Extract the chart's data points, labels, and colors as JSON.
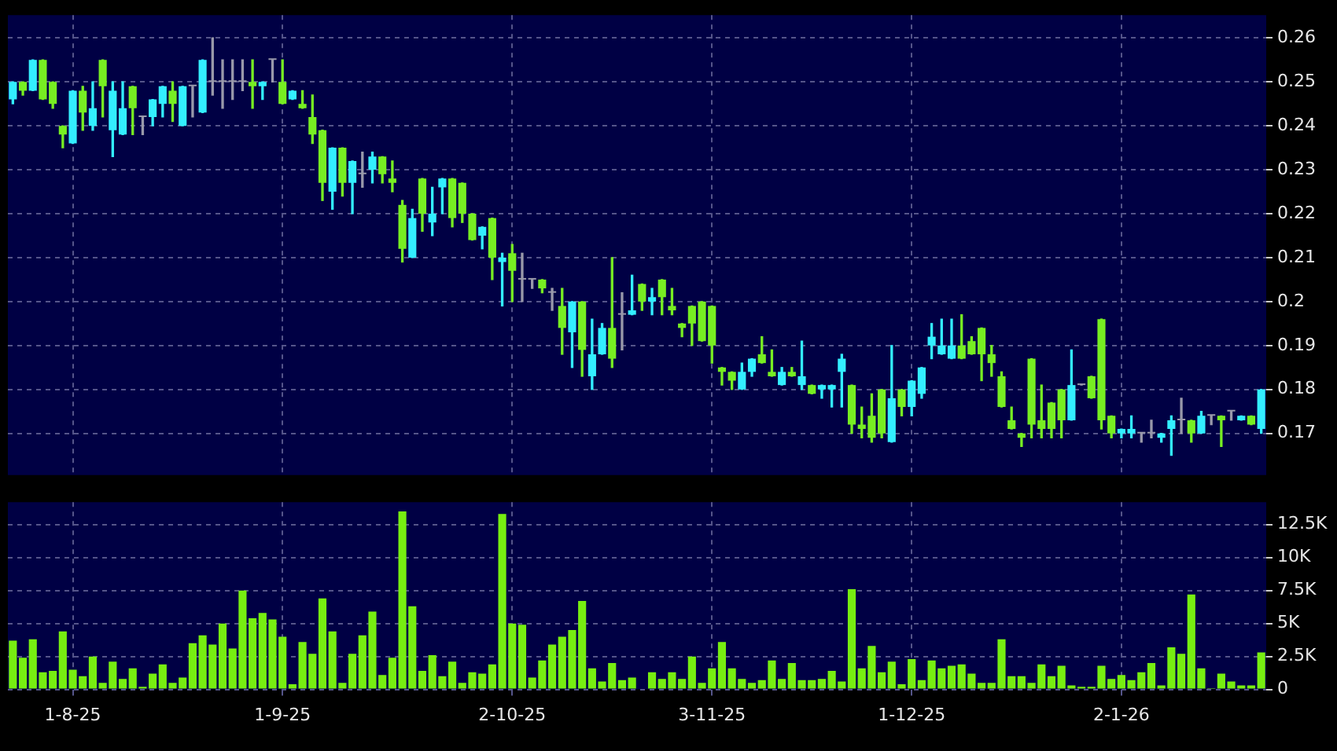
{
  "chart_data": [
    {
      "type": "candlestick",
      "tick_labels": "y",
      "grid": true,
      "categories": [
        null,
        null,
        null,
        null,
        null,
        null,
        null,
        null,
        null,
        null,
        null,
        null,
        null,
        null,
        null,
        null,
        null,
        null,
        null,
        null,
        null,
        null,
        null,
        null,
        null,
        null,
        null,
        null,
        null,
        null,
        null,
        null,
        null,
        null,
        null,
        null,
        null,
        null,
        null,
        null,
        null,
        null,
        null,
        null,
        null,
        null,
        null,
        null,
        null,
        null,
        null,
        null,
        null,
        null,
        null,
        null,
        null,
        null,
        null,
        null,
        null,
        null,
        null,
        null,
        null,
        null,
        null,
        null,
        null,
        null,
        null,
        null,
        null,
        null,
        null,
        null,
        null,
        null,
        null,
        null,
        null,
        null,
        null,
        null,
        null,
        null,
        null,
        null,
        null,
        null,
        null,
        null,
        null,
        null,
        null,
        null,
        null,
        null,
        null,
        null,
        null,
        null,
        null,
        null,
        null,
        null,
        null,
        null,
        null,
        null,
        null,
        null,
        null,
        null,
        null,
        null,
        null,
        null,
        null,
        null,
        null,
        null,
        null,
        null,
        null,
        null
      ],
      "ohlc": [
        [
          0.246,
          0.25,
          0.245,
          0.25
        ],
        [
          0.25,
          0.25,
          0.247,
          0.248
        ],
        [
          0.248,
          0.255,
          0.248,
          0.255
        ],
        [
          0.255,
          0.255,
          0.246,
          0.246
        ],
        [
          0.25,
          0.25,
          0.244,
          0.245
        ],
        [
          0.24,
          0.24,
          0.235,
          0.238
        ],
        [
          0.236,
          0.248,
          0.236,
          0.248
        ],
        [
          0.248,
          0.249,
          0.239,
          0.243
        ],
        [
          0.24,
          0.25,
          0.239,
          0.244
        ],
        [
          0.255,
          0.255,
          0.242,
          0.249
        ],
        [
          0.239,
          0.25,
          0.233,
          0.248
        ],
        [
          0.238,
          0.25,
          0.238,
          0.244
        ],
        [
          0.249,
          0.249,
          0.238,
          0.244
        ],
        [
          0.242,
          0.242,
          0.238,
          0.242
        ],
        [
          0.242,
          0.246,
          0.24,
          0.246
        ],
        [
          0.245,
          0.249,
          0.242,
          0.249
        ],
        [
          0.248,
          0.25,
          0.241,
          0.245
        ],
        [
          0.24,
          0.249,
          0.24,
          0.249
        ],
        [
          0.249,
          0.249,
          0.242,
          0.249
        ],
        [
          0.243,
          0.255,
          0.243,
          0.255
        ],
        [
          0.25,
          0.26,
          0.247,
          0.25
        ],
        [
          0.25,
          0.255,
          0.244,
          0.25
        ],
        [
          0.25,
          0.255,
          0.246,
          0.25
        ],
        [
          0.25,
          0.255,
          0.248,
          0.25
        ],
        [
          0.25,
          0.255,
          0.244,
          0.249
        ],
        [
          0.249,
          0.25,
          0.246,
          0.25
        ],
        [
          0.255,
          0.255,
          0.25,
          0.255
        ],
        [
          0.25,
          0.255,
          0.245,
          0.245
        ],
        [
          0.246,
          0.248,
          0.246,
          0.248
        ],
        [
          0.245,
          0.248,
          0.244,
          0.244
        ],
        [
          0.242,
          0.247,
          0.236,
          0.238
        ],
        [
          0.239,
          0.239,
          0.223,
          0.227
        ],
        [
          0.225,
          0.235,
          0.221,
          0.235
        ],
        [
          0.235,
          0.235,
          0.224,
          0.227
        ],
        [
          0.227,
          0.232,
          0.22,
          0.232
        ],
        [
          0.229,
          0.234,
          0.226,
          0.229
        ],
        [
          0.23,
          0.234,
          0.227,
          0.233
        ],
        [
          0.233,
          0.233,
          0.227,
          0.229
        ],
        [
          0.228,
          0.232,
          0.225,
          0.227
        ],
        [
          0.222,
          0.223,
          0.209,
          0.212
        ],
        [
          0.21,
          0.221,
          0.21,
          0.219
        ],
        [
          0.228,
          0.228,
          0.216,
          0.22
        ],
        [
          0.218,
          0.226,
          0.215,
          0.22
        ],
        [
          0.226,
          0.228,
          0.22,
          0.228
        ],
        [
          0.228,
          0.228,
          0.217,
          0.219
        ],
        [
          0.227,
          0.227,
          0.218,
          0.22
        ],
        [
          0.22,
          0.22,
          0.214,
          0.214
        ],
        [
          0.215,
          0.217,
          0.212,
          0.217
        ],
        [
          0.219,
          0.219,
          0.205,
          0.21
        ],
        [
          0.209,
          0.211,
          0.199,
          0.21
        ],
        [
          0.211,
          0.213,
          0.2,
          0.207
        ],
        [
          0.205,
          0.211,
          0.2,
          0.205
        ],
        [
          0.205,
          0.205,
          0.203,
          0.205
        ],
        [
          0.205,
          0.205,
          0.202,
          0.203
        ],
        [
          0.202,
          0.203,
          0.198,
          0.202
        ],
        [
          0.199,
          0.203,
          0.188,
          0.194
        ],
        [
          0.193,
          0.2,
          0.185,
          0.2
        ],
        [
          0.2,
          0.2,
          0.183,
          0.189
        ],
        [
          0.183,
          0.196,
          0.18,
          0.188
        ],
        [
          0.188,
          0.195,
          0.188,
          0.194
        ],
        [
          0.194,
          0.21,
          0.185,
          0.187
        ],
        [
          0.197,
          0.202,
          0.189,
          0.197
        ],
        [
          0.197,
          0.206,
          0.197,
          0.198
        ],
        [
          0.204,
          0.204,
          0.198,
          0.2
        ],
        [
          0.2,
          0.203,
          0.197,
          0.201
        ],
        [
          0.205,
          0.205,
          0.197,
          0.201
        ],
        [
          0.199,
          0.203,
          0.197,
          0.198
        ],
        [
          0.195,
          0.195,
          0.192,
          0.194
        ],
        [
          0.199,
          0.199,
          0.19,
          0.195
        ],
        [
          0.2,
          0.2,
          0.191,
          0.191
        ],
        [
          0.199,
          0.199,
          0.186,
          0.19
        ],
        [
          0.185,
          0.185,
          0.181,
          0.184
        ],
        [
          0.184,
          0.184,
          0.18,
          0.182
        ],
        [
          0.18,
          0.186,
          0.18,
          0.184
        ],
        [
          0.184,
          0.187,
          0.183,
          0.187
        ],
        [
          0.188,
          0.192,
          0.186,
          0.186
        ],
        [
          0.184,
          0.189,
          0.183,
          0.183
        ],
        [
          0.181,
          0.185,
          0.181,
          0.184
        ],
        [
          0.184,
          0.185,
          0.183,
          0.183
        ],
        [
          0.181,
          0.191,
          0.18,
          0.183
        ],
        [
          0.181,
          0.181,
          0.179,
          0.179
        ],
        [
          0.18,
          0.181,
          0.178,
          0.181
        ],
        [
          0.18,
          0.181,
          0.176,
          0.181
        ],
        [
          0.184,
          0.188,
          0.176,
          0.187
        ],
        [
          0.181,
          0.181,
          0.17,
          0.172
        ],
        [
          0.172,
          0.176,
          0.169,
          0.171
        ],
        [
          0.174,
          0.179,
          0.168,
          0.169
        ],
        [
          0.18,
          0.18,
          0.169,
          0.17
        ],
        [
          0.168,
          0.19,
          0.168,
          0.178
        ],
        [
          0.18,
          0.18,
          0.174,
          0.176
        ],
        [
          0.176,
          0.182,
          0.174,
          0.182
        ],
        [
          0.179,
          0.185,
          0.178,
          0.185
        ],
        [
          0.19,
          0.195,
          0.187,
          0.192
        ],
        [
          0.188,
          0.196,
          0.188,
          0.19
        ],
        [
          0.187,
          0.196,
          0.187,
          0.19
        ],
        [
          0.19,
          0.197,
          0.187,
          0.187
        ],
        [
          0.191,
          0.192,
          0.188,
          0.188
        ],
        [
          0.194,
          0.194,
          0.182,
          0.188
        ],
        [
          0.188,
          0.19,
          0.183,
          0.186
        ],
        [
          0.183,
          0.184,
          0.176,
          0.176
        ],
        [
          0.173,
          0.176,
          0.171,
          0.171
        ],
        [
          0.17,
          0.17,
          0.167,
          0.169
        ],
        [
          0.187,
          0.187,
          0.169,
          0.172
        ],
        [
          0.173,
          0.181,
          0.169,
          0.171
        ],
        [
          0.177,
          0.177,
          0.169,
          0.171
        ],
        [
          0.18,
          0.18,
          0.169,
          0.173
        ],
        [
          0.173,
          0.189,
          0.173,
          0.181
        ],
        [
          0.181,
          0.181,
          0.181,
          0.181
        ],
        [
          0.183,
          0.183,
          0.178,
          0.178
        ],
        [
          0.196,
          0.196,
          0.171,
          0.173
        ],
        [
          0.174,
          0.174,
          0.169,
          0.17
        ],
        [
          0.17,
          0.171,
          0.169,
          0.171
        ],
        [
          0.17,
          0.174,
          0.169,
          0.171
        ],
        [
          0.17,
          0.17,
          0.168,
          0.17
        ],
        [
          0.17,
          0.173,
          0.169,
          0.17
        ],
        [
          0.169,
          0.17,
          0.168,
          0.17
        ],
        [
          0.171,
          0.174,
          0.165,
          0.173
        ],
        [
          0.173,
          0.178,
          0.17,
          0.173
        ],
        [
          0.173,
          0.173,
          0.168,
          0.17
        ],
        [
          0.17,
          0.175,
          0.17,
          0.174
        ],
        [
          0.174,
          0.174,
          0.172,
          0.174
        ],
        [
          0.174,
          0.174,
          0.167,
          0.173
        ],
        [
          0.175,
          0.175,
          0.173,
          0.175
        ],
        [
          0.173,
          0.174,
          0.173,
          0.174
        ],
        [
          0.174,
          0.174,
          0.172,
          0.172
        ],
        [
          0.171,
          0.18,
          0.17,
          0.18
        ]
      ],
      "colors": [
        "#33eeff",
        "#77ee22",
        "#33eeff",
        "#77ee22",
        "#77ee22",
        "#77ee22",
        "#33eeff",
        "#77ee22",
        "#33eeff",
        "#77ee22",
        "#33eeff",
        "#33eeff",
        "#77ee22",
        "#9999aa",
        "#33eeff",
        "#33eeff",
        "#77ee22",
        "#33eeff",
        "#9999aa",
        "#33eeff",
        "#9999aa",
        "#9999aa",
        "#9999aa",
        "#9999aa",
        "#77ee22",
        "#33eeff",
        "#9999aa",
        "#77ee22",
        "#33eeff",
        "#77ee22",
        "#77ee22",
        "#77ee22",
        "#33eeff",
        "#77ee22",
        "#33eeff",
        "#9999aa",
        "#33eeff",
        "#77ee22",
        "#77ee22",
        "#77ee22",
        "#33eeff",
        "#77ee22",
        "#33eeff",
        "#33eeff",
        "#77ee22",
        "#77ee22",
        "#77ee22",
        "#33eeff",
        "#77ee22",
        "#33eeff",
        "#77ee22",
        "#9999aa",
        "#9999aa",
        "#77ee22",
        "#9999aa",
        "#77ee22",
        "#33eeff",
        "#77ee22",
        "#33eeff",
        "#33eeff",
        "#77ee22",
        "#9999aa",
        "#33eeff",
        "#77ee22",
        "#33eeff",
        "#77ee22",
        "#77ee22",
        "#77ee22",
        "#77ee22",
        "#77ee22",
        "#77ee22",
        "#77ee22",
        "#77ee22",
        "#33eeff",
        "#33eeff",
        "#77ee22",
        "#77ee22",
        "#33eeff",
        "#77ee22",
        "#33eeff",
        "#77ee22",
        "#33eeff",
        "#33eeff",
        "#33eeff",
        "#77ee22",
        "#77ee22",
        "#77ee22",
        "#77ee22",
        "#33eeff",
        "#77ee22",
        "#33eeff",
        "#33eeff",
        "#33eeff",
        "#33eeff",
        "#33eeff",
        "#77ee22",
        "#77ee22",
        "#77ee22",
        "#77ee22",
        "#77ee22",
        "#77ee22",
        "#77ee22",
        "#77ee22",
        "#77ee22",
        "#77ee22",
        "#77ee22",
        "#33eeff",
        "#9999aa",
        "#77ee22",
        "#77ee22",
        "#77ee22",
        "#33eeff",
        "#33eeff",
        "#9999aa",
        "#9999aa",
        "#33eeff",
        "#33eeff",
        "#9999aa",
        "#77ee22",
        "#33eeff",
        "#9999aa",
        "#77ee22",
        "#9999aa",
        "#33eeff",
        "#77ee22",
        "#33eeff"
      ],
      "ylim": [
        0.1605,
        0.2652
      ],
      "yticks": [
        0.17,
        0.18,
        0.19,
        0.2,
        0.21,
        0.22,
        0.23,
        0.24,
        0.25,
        0.26
      ]
    },
    {
      "type": "bar",
      "grid": true,
      "color": "#77ee11",
      "categories": [
        null,
        null,
        null,
        null,
        null,
        null,
        "1-8-25",
        null,
        null,
        null,
        null,
        null,
        null,
        null,
        null,
        null,
        null,
        null,
        null,
        null,
        null,
        null,
        null,
        null,
        null,
        null,
        null,
        "1-9-25",
        null,
        null,
        null,
        null,
        null,
        null,
        null,
        null,
        null,
        null,
        null,
        null,
        null,
        null,
        null,
        null,
        null,
        null,
        null,
        null,
        null,
        null,
        "2-10-25",
        null,
        null,
        null,
        null,
        null,
        null,
        null,
        null,
        null,
        null,
        null,
        null,
        null,
        null,
        null,
        null,
        null,
        null,
        null,
        "3-11-25",
        null,
        null,
        null,
        null,
        null,
        null,
        null,
        null,
        null,
        null,
        null,
        null,
        null,
        null,
        null,
        null,
        null,
        null,
        null,
        "1-12-25",
        null,
        null,
        null,
        null,
        null,
        null,
        null,
        null,
        null,
        null,
        null,
        null,
        null,
        null,
        null,
        null,
        null,
        null,
        null,
        null,
        "2-1-26",
        null,
        null,
        null,
        null,
        null,
        null,
        null,
        null,
        null,
        null,
        null,
        null,
        null,
        null
      ],
      "values": [
        3700,
        2400,
        3800,
        1300,
        1400,
        4400,
        1500,
        1000,
        2500,
        500,
        2100,
        800,
        1600,
        200,
        1200,
        1900,
        500,
        900,
        3500,
        4100,
        3400,
        5000,
        3100,
        7500,
        5400,
        5800,
        5300,
        4000,
        400,
        3600,
        2700,
        6900,
        4400,
        500,
        2700,
        4100,
        5900,
        1100,
        2400,
        13500,
        6300,
        1400,
        2600,
        1000,
        2100,
        500,
        1300,
        1200,
        1900,
        13300,
        5000,
        4900,
        900,
        2200,
        3400,
        4000,
        4500,
        6700,
        1600,
        600,
        2000,
        700,
        900,
        0,
        1300,
        800,
        1300,
        800,
        2500,
        500,
        1600,
        3600,
        1600,
        800,
        500,
        700,
        2200,
        800,
        2000,
        700,
        700,
        800,
        1400,
        600,
        7600,
        1600,
        3300,
        1300,
        2100,
        400,
        2300,
        700,
        2200,
        1600,
        1800,
        1900,
        1200,
        500,
        500,
        3800,
        1000,
        1000,
        500,
        1900,
        1000,
        1800,
        300,
        200,
        200,
        1800,
        800,
        1100,
        700,
        1300,
        2000,
        300,
        3200,
        2700,
        7200,
        1600,
        100,
        1200,
        600,
        300,
        300,
        2800
      ],
      "ylim": [
        0,
        14200
      ],
      "yticks": [
        0,
        {
          "value": 2500,
          "label": "2.5K"
        },
        {
          "value": 5000,
          "label": "5K"
        },
        {
          "value": 7500,
          "label": "7.5K"
        },
        {
          "value": 10000,
          "label": "10K"
        },
        {
          "value": 12500,
          "label": "12.5K"
        }
      ]
    }
  ]
}
